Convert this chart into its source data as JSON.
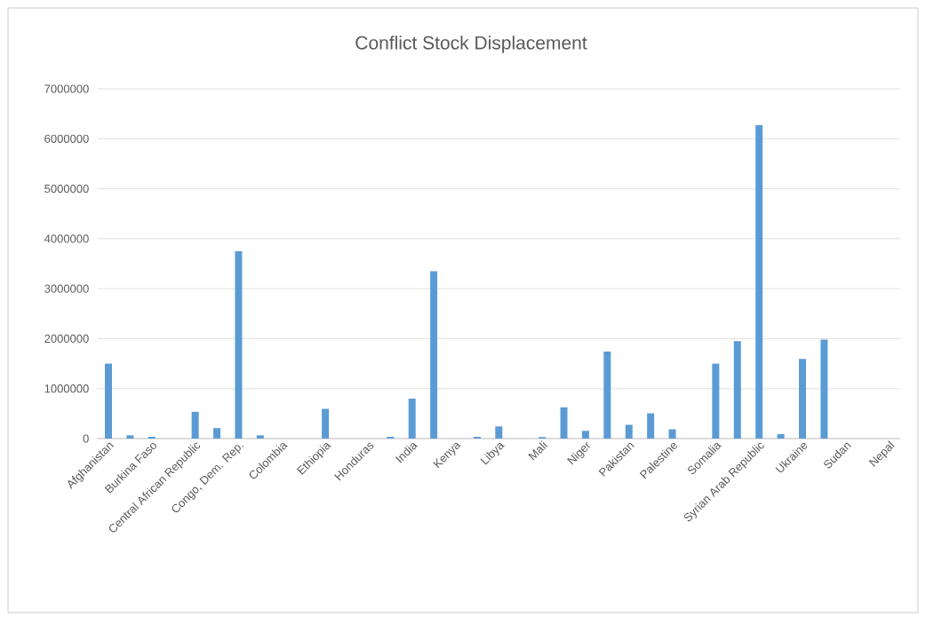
{
  "chart_data": {
    "type": "bar",
    "title": "Conflict Stock Displacement",
    "categories": [
      "Afghanistan",
      null,
      "Burkina Faso",
      null,
      "Central African Republic",
      null,
      "Congo, Dem. Rep.",
      null,
      "Colombia",
      null,
      "Ethiopia",
      null,
      "Honduras",
      null,
      "India",
      null,
      "Kenya",
      null,
      "Libya",
      null,
      "Mali",
      null,
      "Niger",
      null,
      "Pakistan",
      null,
      "Palestine",
      null,
      "Somalia",
      null,
      "Syrian Arab Republic",
      null,
      "Ukraine",
      null,
      "Sudan",
      null,
      "Nepal"
    ],
    "values": [
      1500000,
      65000,
      35000,
      0,
      535000,
      210000,
      3750000,
      65000,
      0,
      0,
      595000,
      0,
      0,
      35000,
      800000,
      3350000,
      0,
      35000,
      243000,
      0,
      30000,
      625000,
      155000,
      1740000,
      275000,
      505000,
      185000,
      0,
      1500000,
      1950000,
      6270000,
      90000,
      1595000,
      1980000,
      0,
      0,
      0
    ],
    "color": "#5b9bd5",
    "ylim": [
      0,
      7000000
    ],
    "yticks": [
      0,
      1000000,
      2000000,
      3000000,
      4000000,
      5000000,
      6000000,
      7000000
    ],
    "grid": "y"
  }
}
